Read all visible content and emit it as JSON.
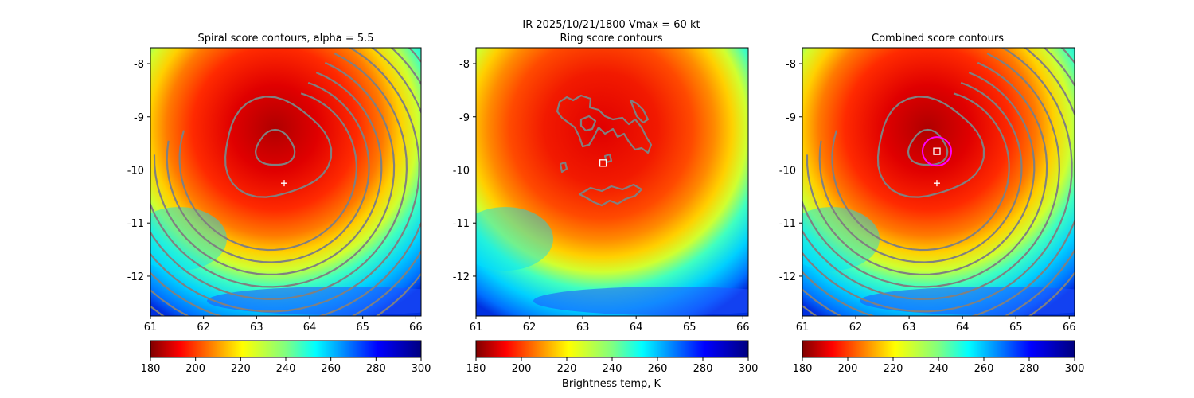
{
  "figure": {
    "suptitle_line1": "IR  2025/10/21/1800    Vmax = 60 kt",
    "colorbar_label": "Brightness temp, K"
  },
  "chart_data": [
    {
      "type": "heatmap",
      "title": "Spiral score contours, alpha =  5.5",
      "xlim": [
        61.0,
        66.1
      ],
      "ylim": [
        -12.75,
        -7.7
      ],
      "xticks": [
        "61",
        "62",
        "63",
        "64",
        "65",
        "66"
      ],
      "yticks": [
        "-8",
        "-9",
        "-10",
        "-11",
        "-12"
      ],
      "xtick_values": [
        61,
        62,
        63,
        64,
        65,
        66
      ],
      "ytick_values": [
        -8,
        -9,
        -10,
        -11,
        -12
      ],
      "color_range": [
        180,
        300
      ],
      "colorbar_ticks": [
        "180",
        "200",
        "220",
        "240",
        "260",
        "280",
        "300"
      ],
      "colorbar_values": [
        180,
        200,
        220,
        240,
        260,
        280,
        300
      ],
      "contour_center": [
        63.35,
        -9.6
      ],
      "contour_type": "spiral",
      "markers": [
        {
          "symbol": "plus",
          "lon": 63.52,
          "lat": -10.25,
          "color": "#ffffff"
        }
      ]
    },
    {
      "type": "heatmap",
      "title": "Ring score contours",
      "xlim": [
        61.0,
        66.1
      ],
      "ylim": [
        -12.75,
        -7.7
      ],
      "xticks": [
        "61",
        "62",
        "63",
        "64",
        "65",
        "66"
      ],
      "yticks": [
        "-8",
        "-9",
        "-10",
        "-11",
        "-12"
      ],
      "xtick_values": [
        61,
        62,
        63,
        64,
        65,
        66
      ],
      "ytick_values": [
        -8,
        -9,
        -10,
        -11,
        -12
      ],
      "color_range": [
        180,
        300
      ],
      "colorbar_ticks": [
        "180",
        "200",
        "220",
        "240",
        "260",
        "280",
        "300"
      ],
      "colorbar_values": [
        180,
        200,
        220,
        240,
        260,
        280,
        300
      ],
      "contour_type": "ring",
      "markers": [
        {
          "symbol": "square",
          "lon": 63.38,
          "lat": -9.87,
          "color": "#ffffff"
        }
      ]
    },
    {
      "type": "heatmap",
      "title": "Combined score contours",
      "xlim": [
        61.0,
        66.1
      ],
      "ylim": [
        -12.75,
        -7.7
      ],
      "xticks": [
        "61",
        "62",
        "63",
        "64",
        "65",
        "66"
      ],
      "yticks": [
        "-8",
        "-9",
        "-10",
        "-11",
        "-12"
      ],
      "xtick_values": [
        61,
        62,
        63,
        64,
        65,
        66
      ],
      "ytick_values": [
        -8,
        -9,
        -10,
        -11,
        -12
      ],
      "color_range": [
        180,
        300
      ],
      "colorbar_ticks": [
        "180",
        "200",
        "220",
        "240",
        "260",
        "280",
        "300"
      ],
      "colorbar_values": [
        180,
        200,
        220,
        240,
        260,
        280,
        300
      ],
      "contour_center": [
        63.35,
        -9.6
      ],
      "contour_type": "spiral",
      "markers": [
        {
          "symbol": "plus",
          "lon": 63.52,
          "lat": -10.25,
          "color": "#ffffff"
        },
        {
          "symbol": "square",
          "lon": 63.52,
          "lat": -9.65,
          "color": "#ffffff"
        },
        {
          "symbol": "circle",
          "lon": 63.52,
          "lat": -9.65,
          "color": "#ff00ff"
        }
      ]
    }
  ],
  "colors": {
    "contour": "#808080",
    "marker": "#ffffff",
    "ring": "#ff00ff",
    "colormap": [
      "#800000",
      "#ff0000",
      "#ff8000",
      "#ffff00",
      "#80ff80",
      "#00ffff",
      "#0080ff",
      "#0000ff",
      "#000080"
    ]
  }
}
